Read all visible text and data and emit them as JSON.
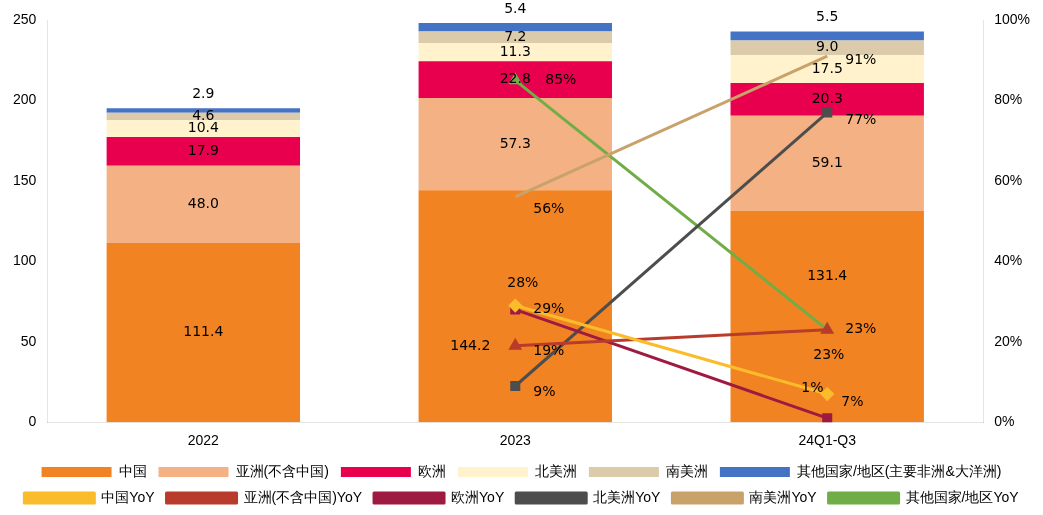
{
  "chart_data": {
    "type": "bar",
    "stacked": true,
    "categories": [
      "2022",
      "2023",
      "24Q1-Q3"
    ],
    "series": [
      {
        "name": "中国",
        "color": "#f28322",
        "values": [
          111.4,
          144.2,
          131.4
        ],
        "value_labels": [
          "111.4",
          "144.2",
          "131.4"
        ]
      },
      {
        "name": "亚洲(不含中国)",
        "color": "#f4b183",
        "values": [
          48.0,
          57.3,
          59.1
        ],
        "value_labels": [
          "48.0",
          "57.3",
          "59.1"
        ]
      },
      {
        "name": "欧洲",
        "color": "#e8004f",
        "values": [
          17.9,
          22.8,
          20.3
        ],
        "value_labels": [
          "17.9",
          "22.8",
          "20.3"
        ]
      },
      {
        "name": "北美洲",
        "color": "#fff2cc",
        "values": [
          10.4,
          11.3,
          17.5
        ],
        "value_labels": [
          "10.4",
          "11.3",
          "17.5"
        ]
      },
      {
        "name": "南美洲",
        "color": "#dccbaa",
        "values": [
          4.6,
          7.2,
          9.0
        ],
        "value_labels": [
          "4.6",
          "7.2",
          "9.0"
        ]
      },
      {
        "name": "其他国家/地区(主要非洲&大洋洲)",
        "color": "#4472c4",
        "values": [
          2.9,
          5.4,
          5.5
        ],
        "value_labels": [
          "2.9",
          "5.4",
          "5.5"
        ]
      },
      {
        "name": "中国YoY",
        "type": "line",
        "axis": "y2",
        "marker": "diamond",
        "color": "#fbbc2b",
        "values": [
          null,
          29,
          7
        ],
        "value_labels": [
          null,
          "29%",
          "7%"
        ]
      },
      {
        "name": "亚洲(不含中国)YoY",
        "type": "line",
        "axis": "y2",
        "marker": "triangle",
        "color": "#b83b2b",
        "values": [
          null,
          19,
          23
        ],
        "value_labels": [
          null,
          "19%",
          "23%"
        ]
      },
      {
        "name": "欧洲YoY",
        "type": "line",
        "axis": "y2",
        "marker": "square",
        "color": "#9e1a40",
        "values": [
          null,
          28,
          1
        ],
        "value_labels": [
          null,
          "28%",
          "1%"
        ]
      },
      {
        "name": "北美洲YoY",
        "type": "line",
        "axis": "y2",
        "marker": "square",
        "color": "#4d4d4d",
        "values": [
          null,
          9,
          77
        ],
        "value_labels": [
          null,
          "9%",
          "77%"
        ]
      },
      {
        "name": "南美洲YoY",
        "type": "line",
        "axis": "y2",
        "marker": "none",
        "color": "#c9a26b",
        "values": [
          null,
          56,
          91
        ],
        "value_labels": [
          null,
          "56%",
          "91%"
        ]
      },
      {
        "name": "其他国家/地区YoY",
        "type": "line",
        "axis": "y2",
        "marker": "triangle",
        "color": "#70ad47",
        "values": [
          null,
          85,
          23
        ],
        "value_labels": [
          null,
          "85%",
          "23%"
        ]
      }
    ],
    "ylim": [
      0,
      250
    ],
    "yticks": [
      0,
      50,
      100,
      150,
      200,
      250
    ],
    "y2lim": [
      0,
      100
    ],
    "y2ticks": [
      {
        "value": 0,
        "label": "0%"
      },
      {
        "value": 20,
        "label": "20%"
      },
      {
        "value": 40,
        "label": "40%"
      },
      {
        "value": 60,
        "label": "60%"
      },
      {
        "value": 80,
        "label": "80%"
      },
      {
        "value": 100,
        "label": "100%"
      }
    ],
    "grid": false,
    "legend": "bottom"
  }
}
